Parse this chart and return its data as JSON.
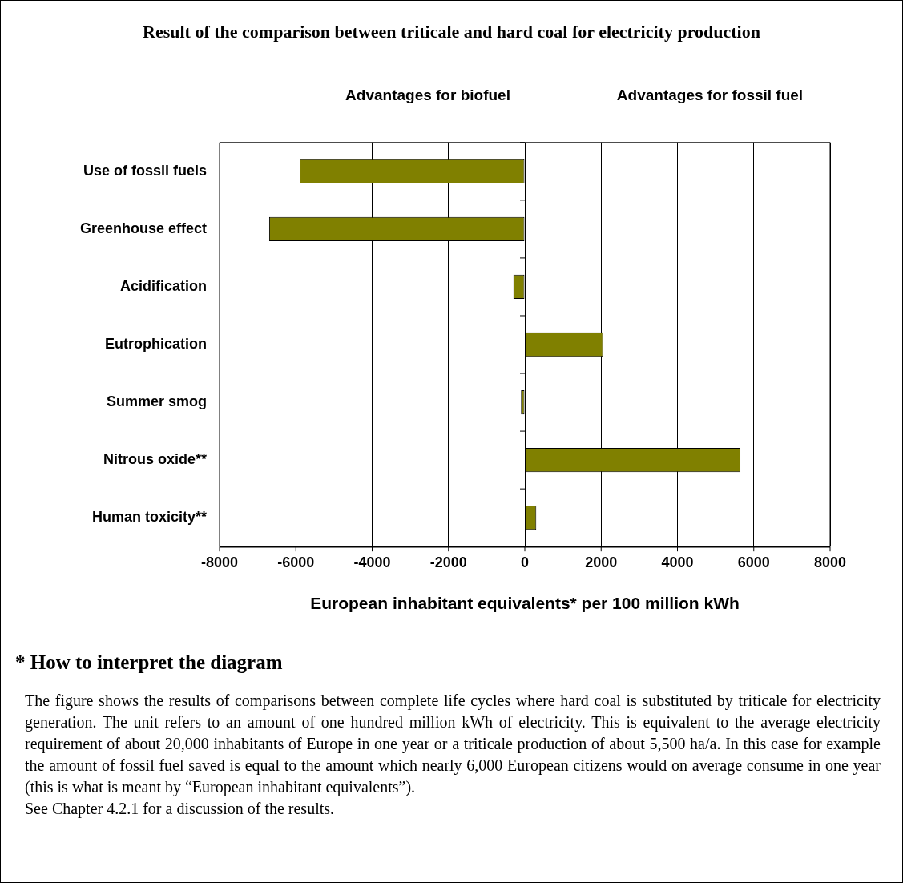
{
  "chart_data": {
    "type": "bar",
    "orientation": "horizontal",
    "title": "Result of the comparison between triticale and hard coal for electricity production",
    "xlabel": "European inhabitant equivalents* per 100 million kWh",
    "categories": [
      "Use of fossil fuels",
      "Greenhouse effect",
      "Acidification",
      "Eutrophication",
      "Summer smog",
      "Nitrous oxide**",
      "Human toxicity**"
    ],
    "values": [
      -5900,
      -6700,
      -300,
      2050,
      -100,
      5650,
      300
    ],
    "color": "#808000",
    "xlim": [
      -8000,
      8000
    ],
    "xticks": [
      -8000,
      -6000,
      -4000,
      -2000,
      0,
      2000,
      4000,
      6000,
      8000
    ],
    "grid": "x",
    "legend": false,
    "annotations": [
      "Advantages for biofuel",
      "Advantages for fossil fuel",
      "* How to interpret the diagram",
      "The figure shows the results of comparisons between complete life cycles where hard coal is substituted by triticale for electricity generation. The unit refers to an amount of one hundred million kWh of electricity. This is equivalent to the average electricity requirement of about 20,000 inhabitants of Europe in one year or a triticale production of about 5,500 ha/a. In this case for example the amount of fossil fuel saved is equal to the amount which nearly 6,000 European citizens would on average consume in one year (this is what is meant by “European inhabitant equivalents”).",
      "See Chapter 4.2.1 for a discussion of the results."
    ]
  }
}
